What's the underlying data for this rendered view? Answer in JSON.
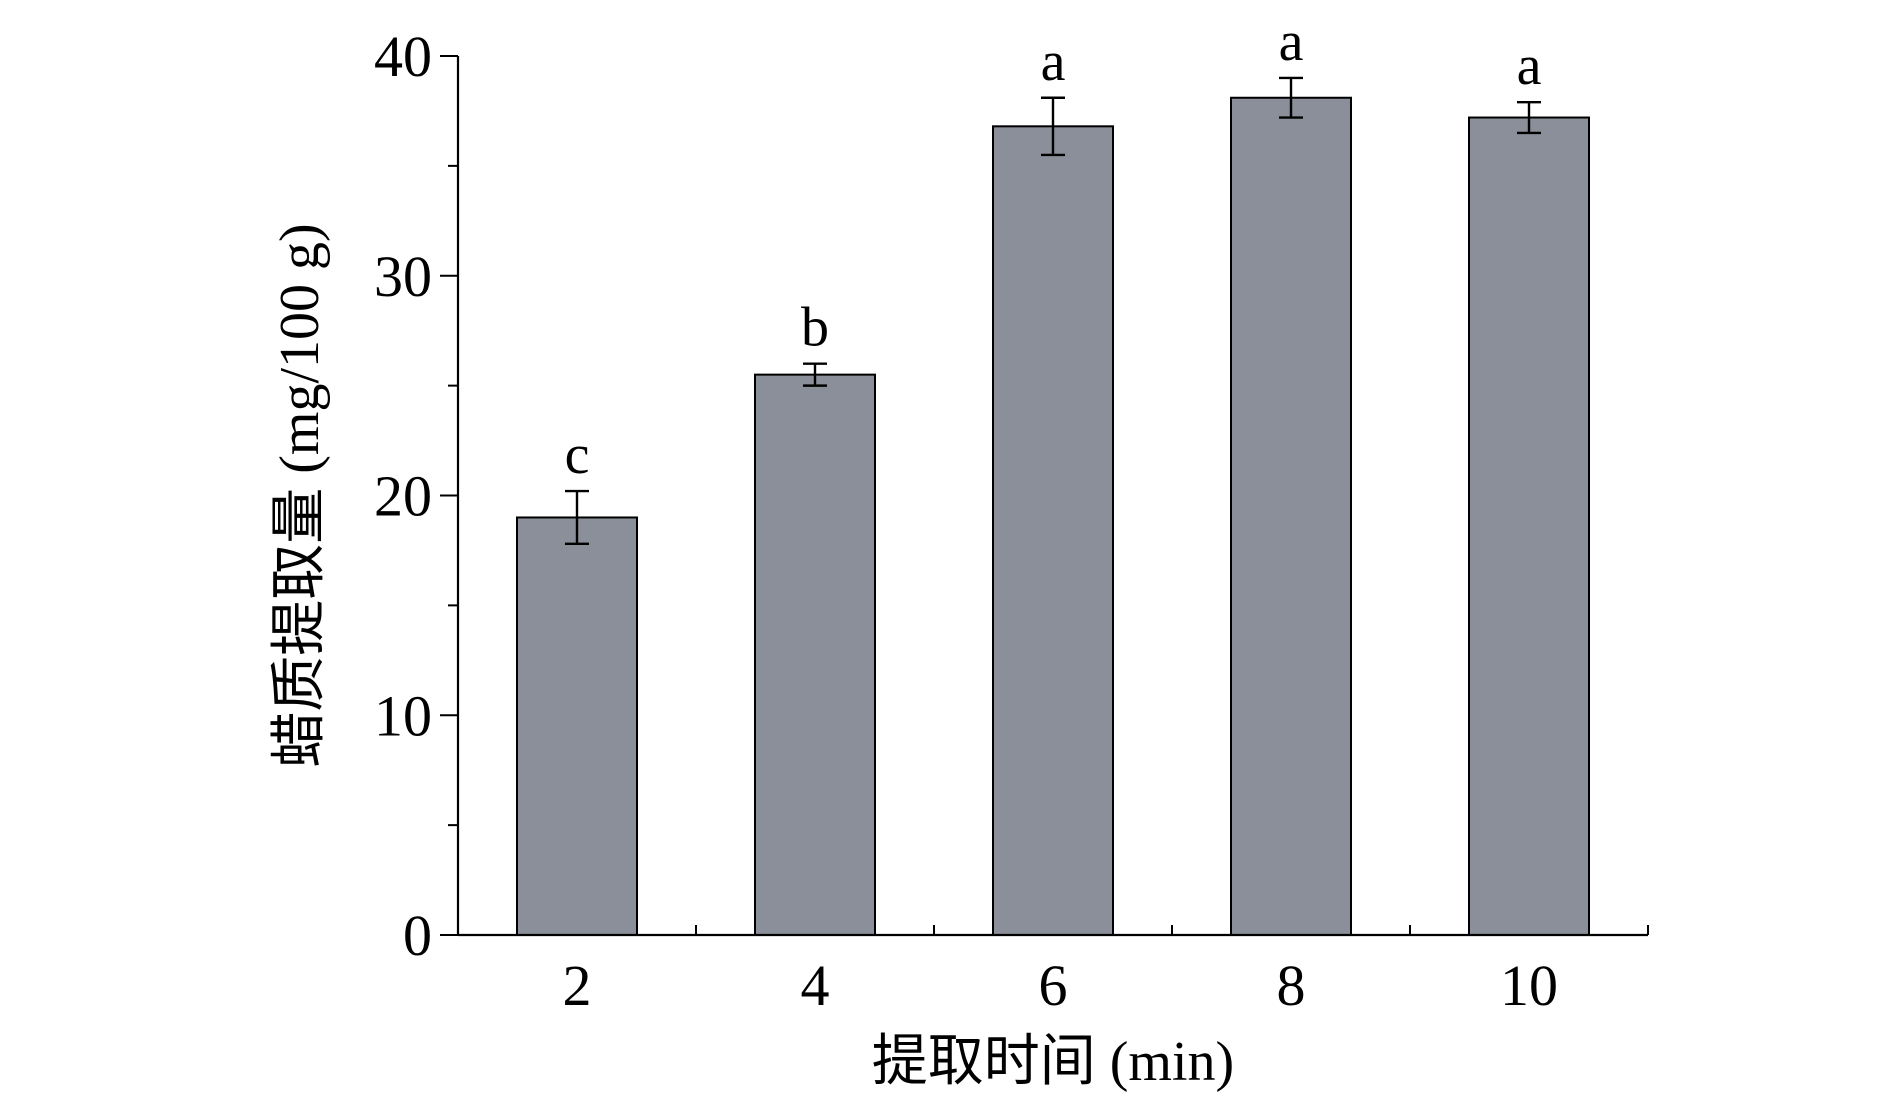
{
  "chart_data": {
    "type": "bar",
    "title": "",
    "xlabel": "提取时间 (min)",
    "ylabel": "蜡质提取量 (mg/100 g)",
    "categories": [
      "2",
      "4",
      "6",
      "8",
      "10"
    ],
    "values": [
      19.0,
      25.5,
      36.8,
      38.1,
      37.2
    ],
    "errors": [
      1.2,
      0.5,
      1.3,
      0.9,
      0.7
    ],
    "significance_labels": [
      "c",
      "b",
      "a",
      "a",
      "a"
    ],
    "ylim": [
      0,
      40
    ],
    "yticks": [
      0,
      10,
      20,
      30,
      40
    ],
    "grid": false,
    "legend": false,
    "bar_color": "#8a8f99",
    "axis_color": "#000000"
  }
}
